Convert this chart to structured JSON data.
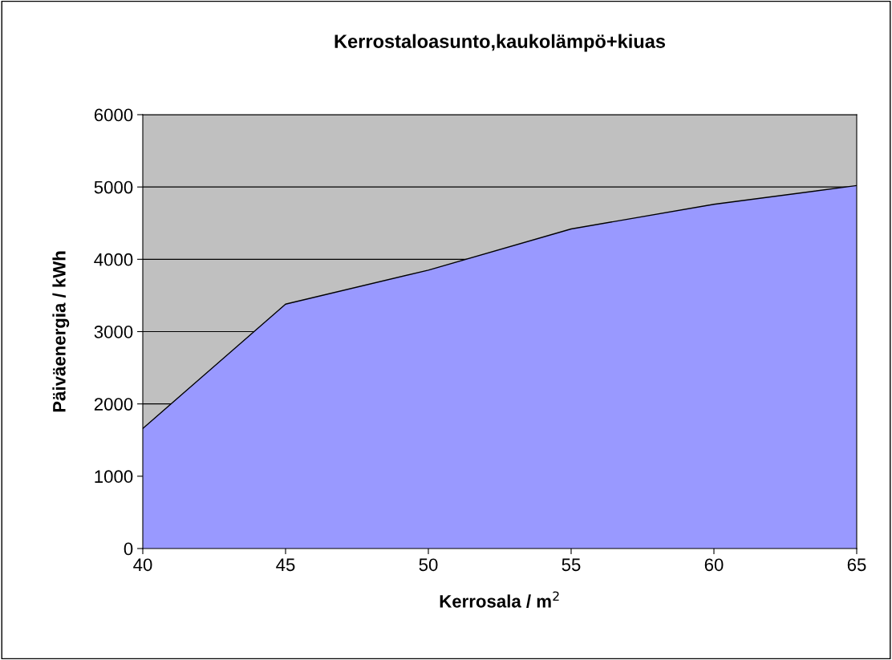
{
  "chart_data": {
    "type": "area",
    "title": "Kerrostaloasunto,kaukolämpö+kiuas",
    "xlabel": "Kerrosala / m$^{2}$",
    "ylabel": "Päiväenergia / kWh",
    "x": [
      40,
      45,
      50,
      55,
      60,
      65
    ],
    "series": [
      {
        "color": "#9999ff",
        "values": [
          1660,
          3380,
          3850,
          4420,
          4760,
          5020
        ]
      }
    ],
    "xlim": [
      40,
      65
    ],
    "xticks": [
      40,
      45,
      50,
      55,
      60,
      65
    ],
    "ylim": [
      0,
      6000
    ],
    "yticks": [
      0,
      1000,
      2000,
      3000,
      4000,
      5000,
      6000
    ],
    "grid": "y"
  }
}
